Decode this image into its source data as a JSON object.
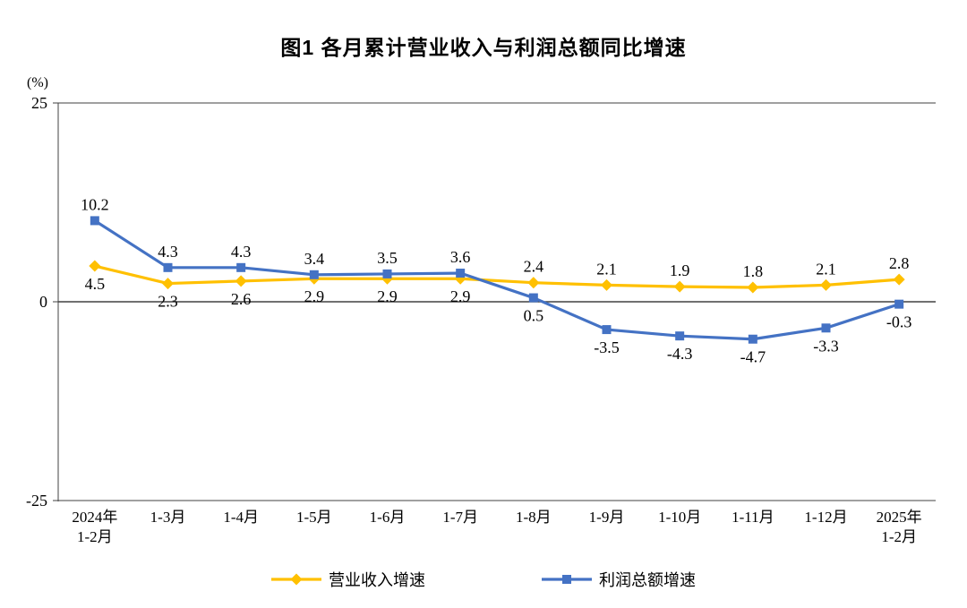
{
  "title": "图1 各月累计营业收入与利润总额同比增速",
  "y_unit": "(%)",
  "chart_data": {
    "type": "line",
    "title": "图1 各月累计营业收入与利润总额同比增速",
    "y_unit": "(%)",
    "categories": [
      "2024年\n1-2月",
      "1-3月",
      "1-4月",
      "1-5月",
      "1-6月",
      "1-7月",
      "1-8月",
      "1-9月",
      "1-10月",
      "1-11月",
      "1-12月",
      "2025年\n1-2月"
    ],
    "series": [
      {
        "name": "营业收入增速",
        "color": "#FFC000",
        "marker": "diamond",
        "values": [
          4.5,
          2.3,
          2.6,
          2.9,
          2.9,
          2.9,
          2.4,
          2.1,
          1.9,
          1.8,
          2.1,
          2.8
        ],
        "label_side": [
          "below",
          "below",
          "below",
          "below",
          "below",
          "below",
          "above",
          "above",
          "above",
          "above",
          "above",
          "above"
        ]
      },
      {
        "name": "利润总额增速",
        "color": "#4472C4",
        "marker": "square",
        "values": [
          10.2,
          4.3,
          4.3,
          3.4,
          3.5,
          3.6,
          0.5,
          -3.5,
          -4.3,
          -4.7,
          -3.3,
          -0.3
        ],
        "label_side": [
          "above",
          "above",
          "above",
          "above",
          "above",
          "above",
          "below",
          "below",
          "below",
          "below",
          "below",
          "below"
        ]
      }
    ],
    "ylim": [
      -25,
      25
    ],
    "y_ticks": [
      25,
      0,
      -25
    ],
    "grid": true,
    "legend_position": "bottom",
    "axis_color": "#404040"
  }
}
